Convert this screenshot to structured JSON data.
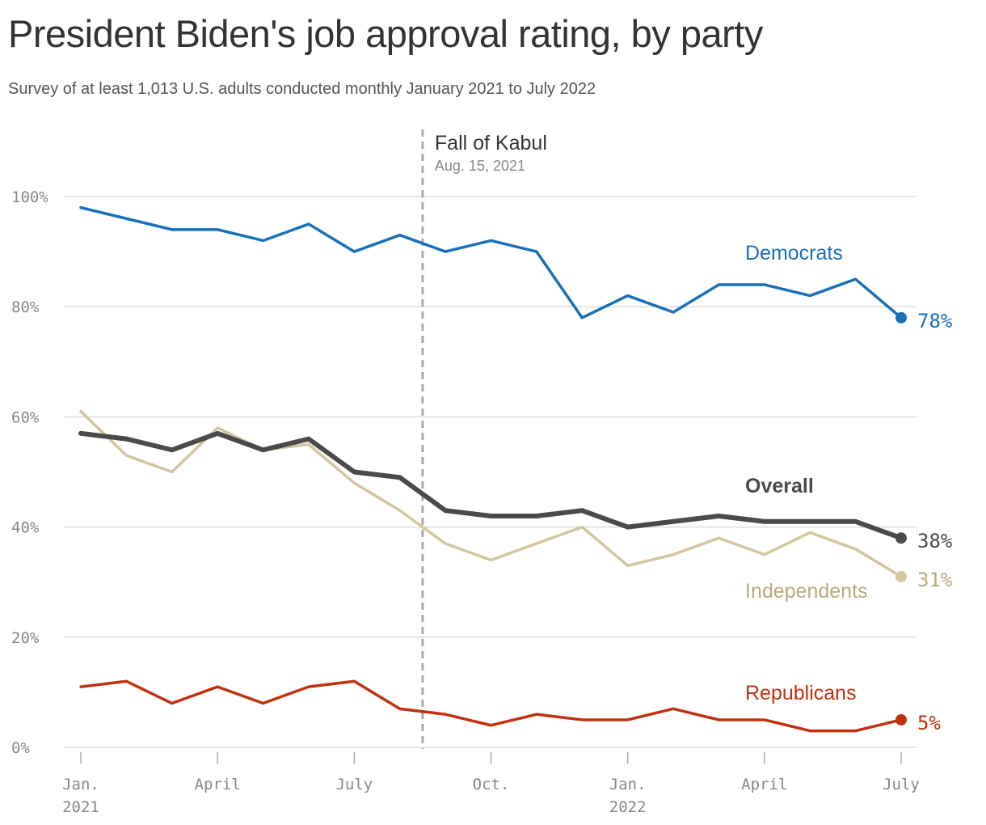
{
  "title": "President Biden's job approval rating, by party",
  "subtitle": "Survey of at least 1,013 U.S. adults conducted monthly January 2021 to July 2022",
  "annotation": {
    "label": "Fall of Kabul",
    "date_label": "Aug. 15, 2021",
    "x": 7.5
  },
  "chart_data": {
    "type": "line",
    "x_labels": [
      "Jan. 2021",
      "Feb. 2021",
      "Mar. 2021",
      "Apr. 2021",
      "May 2021",
      "Jun. 2021",
      "Jul. 2021",
      "Aug. 2021",
      "Sep. 2021",
      "Oct. 2021",
      "Nov. 2021",
      "Dec. 2021",
      "Jan. 2022",
      "Feb. 2022",
      "Mar. 2022",
      "Apr. 2022",
      "May 2022",
      "Jun. 2022",
      "Jul. 2022"
    ],
    "x_ticks": [
      {
        "index": 0,
        "line1": "Jan.",
        "line2": "2021"
      },
      {
        "index": 3,
        "line1": "April",
        "line2": ""
      },
      {
        "index": 6,
        "line1": "July",
        "line2": ""
      },
      {
        "index": 9,
        "line1": "Oct.",
        "line2": ""
      },
      {
        "index": 12,
        "line1": "Jan.",
        "line2": "2022"
      },
      {
        "index": 15,
        "line1": "April",
        "line2": ""
      },
      {
        "index": 18,
        "line1": "July",
        "line2": ""
      }
    ],
    "y_ticks": [
      0,
      20,
      40,
      60,
      80,
      100
    ],
    "y_tick_labels": [
      "0%",
      "20%",
      "40%",
      "60%",
      "80%",
      "100%"
    ],
    "ylim": [
      0,
      100
    ],
    "grid": true,
    "series": [
      {
        "name": "Democrats",
        "color": "#1a70b8",
        "end_label": "78%",
        "values": [
          98,
          96,
          94,
          94,
          92,
          95,
          90,
          93,
          90,
          92,
          90,
          78,
          82,
          79,
          84,
          84,
          82,
          85,
          78
        ]
      },
      {
        "name": "Independents",
        "color": "#d3c69c",
        "label_color": "#b9aa7c",
        "end_label": "31%",
        "values": [
          61,
          53,
          50,
          58,
          54,
          55,
          48,
          43,
          37,
          34,
          37,
          40,
          33,
          35,
          38,
          35,
          39,
          36,
          31
        ]
      },
      {
        "name": "Overall",
        "color": "#4a4a4a",
        "end_label": "38%",
        "values": [
          57,
          56,
          54,
          57,
          54,
          56,
          50,
          49,
          43,
          42,
          42,
          43,
          40,
          41,
          42,
          41,
          41,
          41,
          38
        ]
      },
      {
        "name": "Republicans",
        "color": "#c0310f",
        "end_label": "5%",
        "values": [
          11,
          12,
          8,
          11,
          8,
          11,
          12,
          7,
          6,
          4,
          6,
          5,
          5,
          7,
          5,
          5,
          3,
          3,
          5
        ]
      }
    ]
  }
}
